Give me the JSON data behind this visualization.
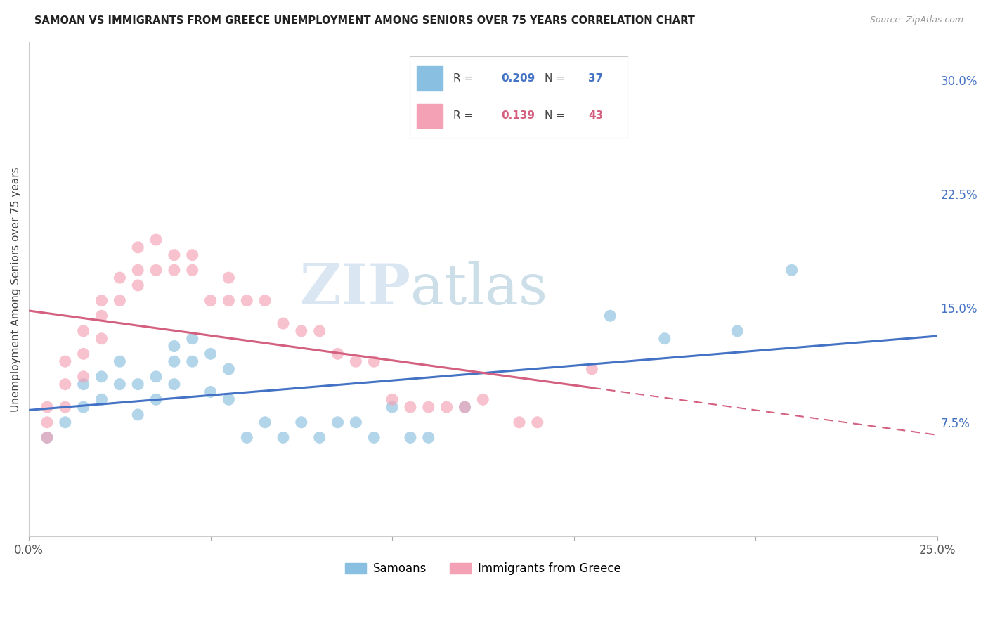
{
  "title": "SAMOAN VS IMMIGRANTS FROM GREECE UNEMPLOYMENT AMONG SENIORS OVER 75 YEARS CORRELATION CHART",
  "source": "Source: ZipAtlas.com",
  "ylabel_left": "Unemployment Among Seniors over 75 years",
  "x_min": 0.0,
  "x_max": 0.25,
  "y_min": 0.0,
  "y_max": 0.325,
  "y_ticks_right": [
    0.075,
    0.15,
    0.225,
    0.3
  ],
  "y_tick_labels_right": [
    "7.5%",
    "15.0%",
    "22.5%",
    "30.0%"
  ],
  "samoan_color": "#89bfe0",
  "greece_color": "#f4a0b5",
  "samoan_x": [
    0.005,
    0.01,
    0.015,
    0.015,
    0.02,
    0.02,
    0.025,
    0.025,
    0.03,
    0.03,
    0.035,
    0.035,
    0.04,
    0.04,
    0.04,
    0.045,
    0.045,
    0.05,
    0.05,
    0.055,
    0.055,
    0.06,
    0.065,
    0.07,
    0.075,
    0.08,
    0.085,
    0.09,
    0.095,
    0.1,
    0.105,
    0.11,
    0.12,
    0.16,
    0.175,
    0.195,
    0.21
  ],
  "samoan_y": [
    0.065,
    0.075,
    0.085,
    0.1,
    0.09,
    0.105,
    0.1,
    0.115,
    0.08,
    0.1,
    0.09,
    0.105,
    0.1,
    0.115,
    0.125,
    0.115,
    0.13,
    0.095,
    0.12,
    0.09,
    0.11,
    0.065,
    0.075,
    0.065,
    0.075,
    0.065,
    0.075,
    0.075,
    0.065,
    0.085,
    0.065,
    0.065,
    0.085,
    0.145,
    0.13,
    0.135,
    0.175
  ],
  "greece_x": [
    0.005,
    0.005,
    0.005,
    0.01,
    0.01,
    0.01,
    0.015,
    0.015,
    0.015,
    0.02,
    0.02,
    0.02,
    0.025,
    0.025,
    0.03,
    0.03,
    0.03,
    0.035,
    0.035,
    0.04,
    0.04,
    0.045,
    0.045,
    0.05,
    0.055,
    0.055,
    0.06,
    0.065,
    0.07,
    0.075,
    0.08,
    0.085,
    0.09,
    0.095,
    0.1,
    0.105,
    0.11,
    0.115,
    0.12,
    0.125,
    0.135,
    0.14,
    0.155
  ],
  "greece_y": [
    0.065,
    0.075,
    0.085,
    0.085,
    0.1,
    0.115,
    0.105,
    0.12,
    0.135,
    0.13,
    0.145,
    0.155,
    0.155,
    0.17,
    0.165,
    0.175,
    0.19,
    0.175,
    0.195,
    0.175,
    0.185,
    0.175,
    0.185,
    0.155,
    0.17,
    0.155,
    0.155,
    0.155,
    0.14,
    0.135,
    0.135,
    0.12,
    0.115,
    0.115,
    0.09,
    0.085,
    0.085,
    0.085,
    0.085,
    0.09,
    0.075,
    0.075,
    0.11
  ],
  "watermark_zip": "ZIP",
  "watermark_atlas": "atlas",
  "background_color": "#ffffff",
  "grid_color": "#e0e0e0",
  "samoan_line_color": "#4472c4",
  "greece_line_color": "#d46080",
  "legend_r1": "0.209",
  "legend_n1": "37",
  "legend_r2": "0.139",
  "legend_n2": "43",
  "legend_color1": "#89bfe0",
  "legend_color2": "#f4a0b5",
  "legend_text_color1": "#4472c4",
  "legend_text_color2": "#d46080",
  "bottom_legend_labels": [
    "Samoans",
    "Immigrants from Greece"
  ]
}
